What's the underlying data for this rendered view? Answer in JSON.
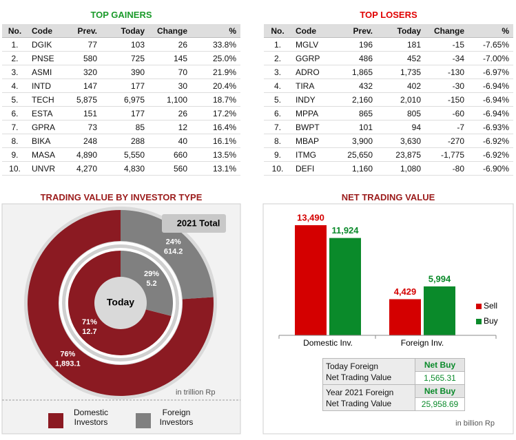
{
  "top_gainers": {
    "title": "TOP GAINERS",
    "columns": [
      "No.",
      "Code",
      "Prev.",
      "Today",
      "Change",
      "%"
    ],
    "rows": [
      [
        "1.",
        "DGIK",
        "77",
        "103",
        "26",
        "33.8%"
      ],
      [
        "2.",
        "PNSE",
        "580",
        "725",
        "145",
        "25.0%"
      ],
      [
        "3.",
        "ASMI",
        "320",
        "390",
        "70",
        "21.9%"
      ],
      [
        "4.",
        "INTD",
        "147",
        "177",
        "30",
        "20.4%"
      ],
      [
        "5.",
        "TECH",
        "5,875",
        "6,975",
        "1,100",
        "18.7%"
      ],
      [
        "6.",
        "ESTA",
        "151",
        "177",
        "26",
        "17.2%"
      ],
      [
        "7.",
        "GPRA",
        "73",
        "85",
        "12",
        "16.4%"
      ],
      [
        "8.",
        "BIKA",
        "248",
        "288",
        "40",
        "16.1%"
      ],
      [
        "9.",
        "MASA",
        "4,890",
        "5,550",
        "660",
        "13.5%"
      ],
      [
        "10.",
        "UNVR",
        "4,270",
        "4,830",
        "560",
        "13.1%"
      ]
    ]
  },
  "top_losers": {
    "title": "TOP LOSERS",
    "columns": [
      "No.",
      "Code",
      "Prev.",
      "Today",
      "Change",
      "%"
    ],
    "rows": [
      [
        "1.",
        "MGLV",
        "196",
        "181",
        "-15",
        "-7.65%"
      ],
      [
        "2.",
        "GGRP",
        "486",
        "452",
        "-34",
        "-7.00%"
      ],
      [
        "3.",
        "ADRO",
        "1,865",
        "1,735",
        "-130",
        "-6.97%"
      ],
      [
        "4.",
        "TIRA",
        "432",
        "402",
        "-30",
        "-6.94%"
      ],
      [
        "5.",
        "INDY",
        "2,160",
        "2,010",
        "-150",
        "-6.94%"
      ],
      [
        "6.",
        "MPPA",
        "865",
        "805",
        "-60",
        "-6.94%"
      ],
      [
        "7.",
        "BWPT",
        "101",
        "94",
        "-7",
        "-6.93%"
      ],
      [
        "8.",
        "MBAP",
        "3,900",
        "3,630",
        "-270",
        "-6.92%"
      ],
      [
        "9.",
        "ITMG",
        "25,650",
        "23,875",
        "-1,775",
        "-6.92%"
      ],
      [
        "10.",
        "DEFI",
        "1,160",
        "1,080",
        "-80",
        "-6.90%"
      ]
    ]
  },
  "chart_data": [
    {
      "type": "donut",
      "title": "TRADING VALUE BY INVESTOR TYPE",
      "categories": [
        "Domestic Investors",
        "Foreign Investors"
      ],
      "colors": [
        "#8b1a22",
        "#808080"
      ],
      "rings": [
        {
          "name": "2021 Total",
          "values": [
            76,
            24
          ],
          "value_labels": [
            "76%",
            "24%"
          ],
          "amounts": [
            1893.1,
            614.2
          ],
          "amount_labels": [
            "1,893.1",
            "614.2"
          ]
        },
        {
          "name": "Today",
          "values": [
            71,
            29
          ],
          "value_labels": [
            "71%",
            "29%"
          ],
          "amounts": [
            12.7,
            5.2
          ],
          "amount_labels": [
            "12.7",
            "5.2"
          ]
        }
      ],
      "unit": "in trillion Rp"
    },
    {
      "type": "bar",
      "title": "NET TRADING VALUE",
      "categories": [
        "Domestic Inv.",
        "Foreign Inv."
      ],
      "series": [
        {
          "name": "Sell",
          "color": "#d40000",
          "values": [
            13490,
            4429
          ],
          "value_labels": [
            "13,490",
            "4,429"
          ]
        },
        {
          "name": "Buy",
          "color": "#0a8a2a",
          "values": [
            11924,
            5994
          ],
          "value_labels": [
            "11,924",
            "5,994"
          ]
        }
      ],
      "ylim": [
        0,
        14000
      ],
      "legend": "right",
      "unit": "in billion Rp"
    }
  ],
  "net_trading": {
    "rows": [
      {
        "label": [
          "Today Foreign",
          "Net Trading Value"
        ],
        "status": "Net Buy",
        "value": "1,565.31"
      },
      {
        "label": [
          "Year 2021 Foreign",
          "Net Trading Value"
        ],
        "status": "Net Buy",
        "value": "25,958.69"
      }
    ]
  }
}
